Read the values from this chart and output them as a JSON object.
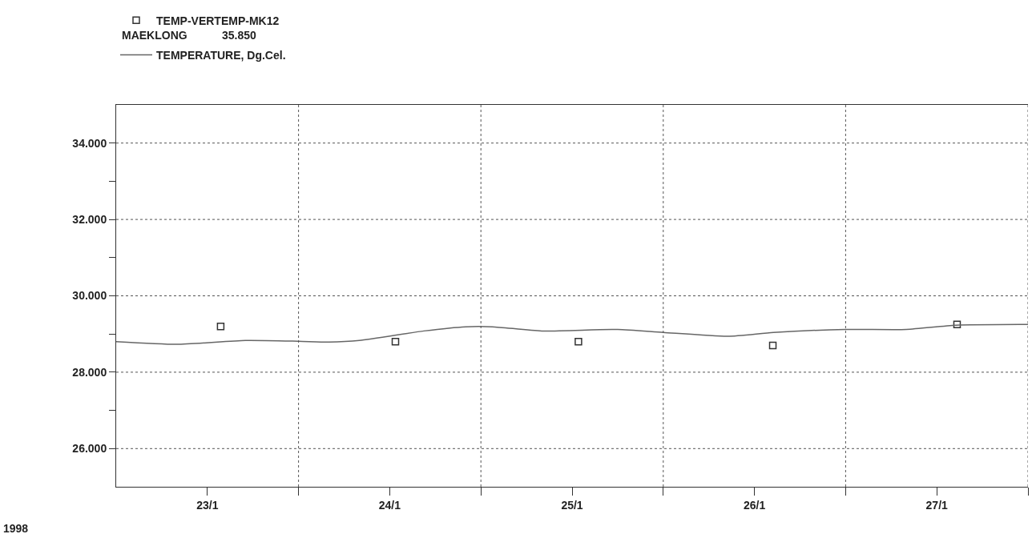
{
  "chart_data": {
    "type": "line",
    "annotations": [
      "MAEKLONG",
      "35.850",
      "1998"
    ],
    "xlim": [
      "1998-01-23T00:00",
      "1998-01-28T00:00"
    ],
    "xticks": [
      {
        "value": "1998-01-23T12:00",
        "label": "23/1"
      },
      {
        "value": "1998-01-24T00:00",
        "label": null
      },
      {
        "value": "1998-01-24T12:00",
        "label": "24/1"
      },
      {
        "value": "1998-01-25T00:00",
        "label": null
      },
      {
        "value": "1998-01-25T12:00",
        "label": "25/1"
      },
      {
        "value": "1998-01-26T00:00",
        "label": null
      },
      {
        "value": "1998-01-26T12:00",
        "label": "26/1"
      },
      {
        "value": "1998-01-27T00:00",
        "label": null
      },
      {
        "value": "1998-01-27T12:00",
        "label": "27/1"
      },
      {
        "value": "1998-01-28T00:00",
        "label": null
      }
    ],
    "ylim": [
      25,
      35
    ],
    "yticks": [
      {
        "value": 26,
        "label": "26.000"
      },
      {
        "value": 27,
        "label": null
      },
      {
        "value": 28,
        "label": "28.000"
      },
      {
        "value": 29,
        "label": null
      },
      {
        "value": 30,
        "label": "30.000"
      },
      {
        "value": 31,
        "label": null
      },
      {
        "value": 32,
        "label": "32.000"
      },
      {
        "value": 33,
        "label": null
      },
      {
        "value": 34,
        "label": "34.000"
      }
    ],
    "grid": true,
    "legend": "top left",
    "line_style": "solid",
    "series": [
      {
        "name": "TEMP-VERTEMP-MK12",
        "type": "scatter",
        "marker": "square",
        "color": "#333333",
        "x": [
          "1998-01-23T13:45",
          "1998-01-24T12:45",
          "1998-01-25T12:50",
          "1998-01-26T14:25",
          "1998-01-27T14:40"
        ],
        "values": [
          29.2,
          28.8,
          28.8,
          28.7,
          29.25
        ]
      },
      {
        "name": "TEMPERATURE, Dg.Cel.",
        "marker": "none",
        "color": "#666666",
        "x": [
          "1998-01-23T00:00",
          "1998-01-23T08:00",
          "1998-01-23T17:00",
          "1998-01-24T00:00",
          "1998-01-24T04:00",
          "1998-01-24T08:00",
          "1998-01-24T16:30",
          "1998-01-24T22:00",
          "1998-01-25T01:30",
          "1998-01-25T08:00",
          "1998-01-25T18:00",
          "1998-01-26T00:00",
          "1998-01-26T08:30",
          "1998-01-26T14:30",
          "1998-01-27T00:00",
          "1998-01-27T08:00",
          "1998-01-27T14:30",
          "1998-01-28T00:00"
        ],
        "values": [
          28.8,
          28.73,
          28.83,
          28.81,
          28.79,
          28.83,
          29.08,
          29.19,
          29.19,
          29.08,
          29.12,
          29.04,
          28.94,
          29.04,
          29.12,
          29.12,
          29.23,
          29.25
        ]
      }
    ]
  }
}
